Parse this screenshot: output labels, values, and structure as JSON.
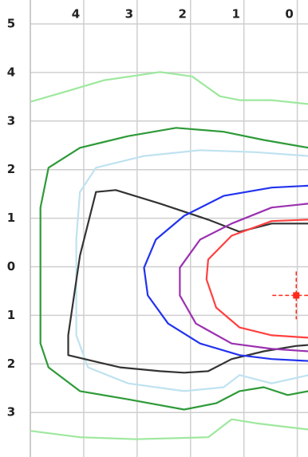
{
  "chart_data": {
    "type": "line",
    "xlim": [
      5,
      -0.2
    ],
    "ylim": [
      5,
      -3.9
    ],
    "xticks": [
      4,
      3,
      2,
      1,
      0
    ],
    "yticks": [
      5,
      4,
      3,
      2,
      1,
      0,
      {
        "value": -1,
        "label": "1"
      },
      {
        "value": -2,
        "label": "2"
      },
      {
        "value": -3,
        "label": "3"
      }
    ],
    "grid": true,
    "series": [
      {
        "color": "#9ee89e",
        "x": [
          4.99,
          4.36,
          3.62,
          2.57,
          1.97,
          1.45,
          1.08,
          0.48,
          -0.21,
          null,
          4.99,
          4.07,
          3.02,
          1.67,
          1.23,
          0.78,
          0.18,
          -0.21
        ],
        "values": [
          3.4,
          3.6,
          3.84,
          4.01,
          3.92,
          3.51,
          3.43,
          3.43,
          3.35,
          null,
          -3.38,
          -3.51,
          -3.55,
          -3.51,
          -3.14,
          -3.22,
          -3.3,
          -3.35
        ]
      },
      {
        "color": "#2e9a38",
        "x": [
          -0.21,
          0.63,
          1.38,
          2.27,
          3.17,
          4.07,
          4.66,
          4.81,
          4.81,
          4.66,
          4.07,
          3.17,
          2.12,
          1.52,
          1.08,
          0.63,
          0.18,
          -0.21
        ],
        "values": [
          2.45,
          2.61,
          2.78,
          2.86,
          2.69,
          2.45,
          2.04,
          1.22,
          -1.58,
          -2.07,
          -2.56,
          -2.73,
          -2.94,
          -2.81,
          -2.56,
          -2.48,
          -2.64,
          -2.56
        ]
      },
      {
        "color": "#bfe2f0",
        "x": [
          -0.21,
          0.78,
          1.82,
          2.87,
          3.77,
          4.07,
          4.14,
          4.14,
          3.92,
          3.17,
          2.12,
          1.38,
          1.08,
          0.48,
          -0.21
        ],
        "values": [
          2.28,
          2.36,
          2.4,
          2.28,
          2.04,
          1.54,
          0.56,
          -1.41,
          -2.07,
          -2.4,
          -2.56,
          -2.48,
          -2.23,
          -2.4,
          -2.23
        ]
      },
      {
        "color": "#333333",
        "x": [
          -0.21,
          0.48,
          1.08,
          1.67,
          2.57,
          3.4,
          3.77,
          4.07,
          4.29,
          4.29,
          3.32,
          2.57,
          2.12,
          1.67,
          1.23,
          0.63,
          0.03,
          -0.21
        ],
        "values": [
          0.89,
          0.89,
          0.72,
          0.97,
          1.3,
          1.58,
          1.54,
          0.23,
          -1.41,
          -1.82,
          -2.07,
          -2.15,
          -2.18,
          -2.15,
          -1.9,
          -1.74,
          -1.63,
          -1.61
        ]
      },
      {
        "color": "#2233ee",
        "x": [
          -0.21,
          0.48,
          1.38,
          2.12,
          2.65,
          2.87,
          2.8,
          2.42,
          1.82,
          1.08,
          0.48,
          -0.21
        ],
        "values": [
          1.67,
          1.63,
          1.46,
          1.05,
          0.56,
          -0.02,
          -0.59,
          -1.17,
          -1.58,
          -1.82,
          -1.9,
          -1.94
        ]
      },
      {
        "color": "#9b30b0",
        "x": [
          -0.21,
          0.48,
          1.23,
          1.82,
          2.2,
          2.2,
          1.9,
          1.23,
          0.48,
          -0.21
        ],
        "values": [
          1.3,
          1.22,
          0.89,
          0.56,
          -0.02,
          -0.59,
          -1.17,
          -1.58,
          -1.69,
          -1.74
        ]
      },
      {
        "color": "#ff4040",
        "x": [
          -0.21,
          0.48,
          1.23,
          1.67,
          1.7,
          1.52,
          1.08,
          0.48,
          -0.21
        ],
        "values": [
          0.97,
          0.94,
          0.64,
          0.15,
          -0.26,
          -0.84,
          -1.25,
          -1.41,
          -1.46
        ]
      }
    ],
    "marker": {
      "x": 0.02,
      "y": -0.59,
      "color": "#ff2a1a"
    }
  }
}
